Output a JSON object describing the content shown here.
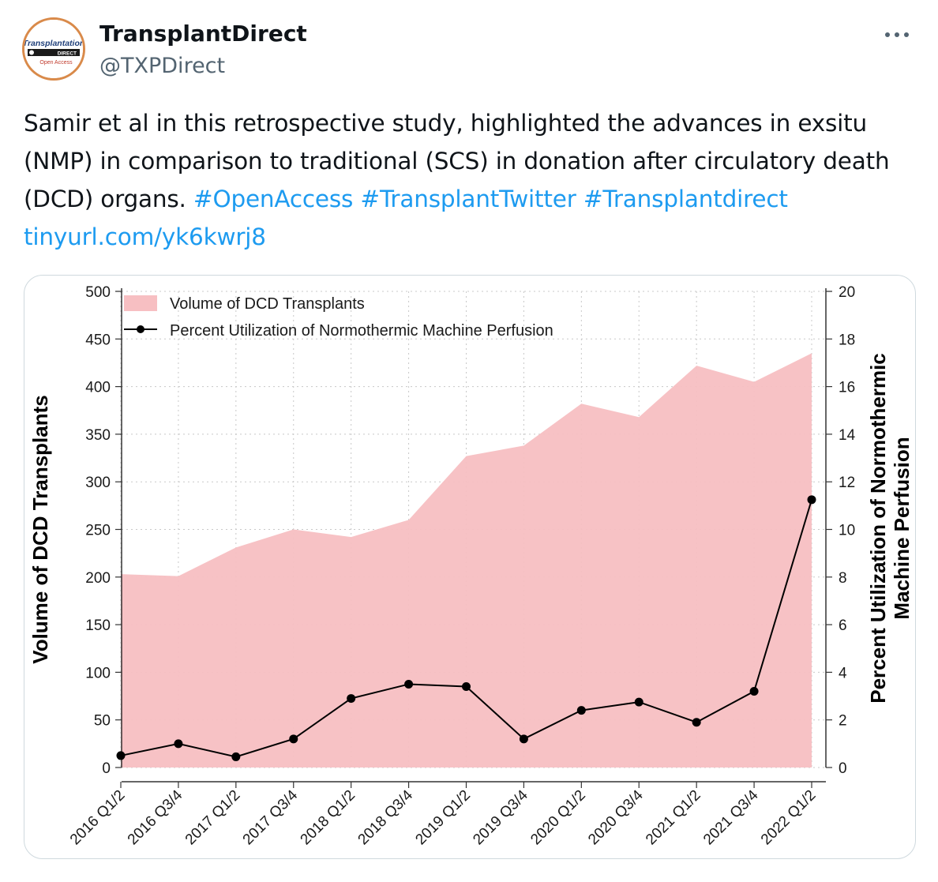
{
  "tweet": {
    "display_name": "TransplantDirect",
    "handle": "@TXPDirect",
    "avatar_logo_text": "Transplantation DIRECT Open Access",
    "more_icon": "more-horizontal-icon",
    "text_parts": [
      {
        "type": "text",
        "value": "Samir et al in this retrospective study, highlighted the advances in exsitu (NMP) in comparison to traditional (SCS) in donation after circulatory death (DCD) organs. "
      },
      {
        "type": "link",
        "value": "#OpenAccess"
      },
      {
        "type": "text",
        "value": " "
      },
      {
        "type": "link",
        "value": "#TransplantTwitter"
      },
      {
        "type": "text",
        "value": " "
      },
      {
        "type": "link",
        "value": "#Transplantdirect"
      },
      {
        "type": "text",
        "value": " "
      },
      {
        "type": "link",
        "value": "tinyurl.com/yk6kwrj8"
      }
    ]
  },
  "colors": {
    "link": "#1d9bf0",
    "area_fill": "#f7bfc2",
    "line": "#000000"
  },
  "chart_data": {
    "type": "area",
    "categories": [
      "2016 Q1/2",
      "2016 Q3/4",
      "2017 Q1/2",
      "2017 Q3/4",
      "2018 Q1/2",
      "2018 Q3/4",
      "2019 Q1/2",
      "2019 Q3/4",
      "2020 Q1/2",
      "2020 Q3/4",
      "2021 Q1/2",
      "2021 Q3/4",
      "2022 Q1/2"
    ],
    "series": [
      {
        "name": "Volume of DCD Transplants",
        "type": "area",
        "axis": "left",
        "values": [
          203,
          201,
          231,
          250,
          242,
          260,
          327,
          338,
          382,
          368,
          422,
          405,
          435
        ]
      },
      {
        "name": "Percent Utilization of Normothermic Machine Perfusion",
        "type": "line",
        "axis": "right",
        "values": [
          0.5,
          1.0,
          0.45,
          1.2,
          2.9,
          3.5,
          3.4,
          1.2,
          2.4,
          2.75,
          1.9,
          3.2,
          11.25
        ]
      }
    ],
    "ylabel": "Volume of DCD Transplants",
    "y2label_lines": [
      "Percent Utilization of Normothermic",
      "Machine Perfusion"
    ],
    "ylim": [
      0,
      500
    ],
    "y2lim": [
      0,
      20
    ],
    "yticks": [
      0,
      50,
      100,
      150,
      200,
      250,
      300,
      350,
      400,
      450,
      500
    ],
    "y2ticks": [
      0,
      2,
      4,
      6,
      8,
      10,
      12,
      14,
      16,
      18,
      20
    ],
    "grid": true,
    "legend_position": "top-left"
  }
}
